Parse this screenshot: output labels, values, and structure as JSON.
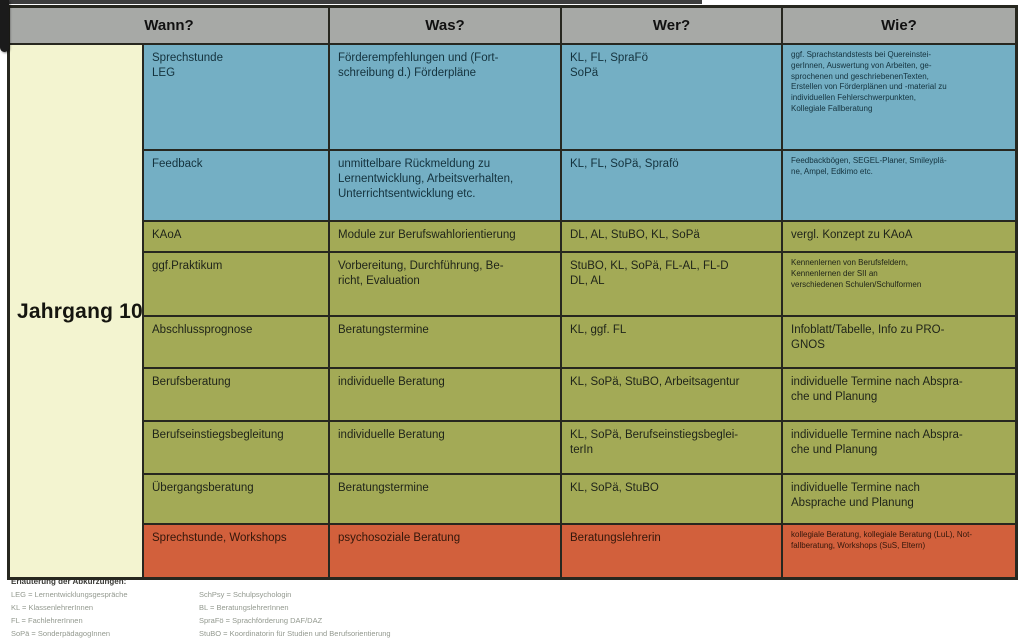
{
  "header": {
    "cols": [
      "Wann?",
      "Was?",
      "Wer?",
      "Wie?"
    ]
  },
  "row_group_label": "Jahrgang 10",
  "table": {
    "rows": [
      {
        "wann": "Sprechstunde\nLEG",
        "was": "Förderempfehlungen und (Fort-\nschreibung d.) Förderpläne",
        "wer": "KL, FL, SpraFö\nSoPä",
        "wie": "ggf. Sprachstandstests bei Quereinstei-\ngerInnen, Auswertung von Arbeiten, ge-\nsprochenen und geschriebenenTexten,\nErstellen von Förderplänen und -material zu\nindividuellen Fehlerschwerpunkten,\nKollegiale Fallberatung"
      },
      {
        "wann": "Feedback",
        "was": "unmittelbare Rückmeldung zu\nLernentwicklung, Arbeitsverhalten,\nUnterrichtsentwicklung etc.",
        "wer": "KL, FL, SoPä, Sprafö",
        "wie": "Feedbackbögen, SEGEL-Planer, Smileyplä-\nne, Ampel, Edkimo etc."
      },
      {
        "wann": "KAoA",
        "was": "Module zur Berufswahlorientierung",
        "wer": "DL, AL, StuBO, KL, SoPä",
        "wie": "vergl. Konzept zu KAoA"
      },
      {
        "wann": "ggf.Praktikum",
        "was": "Vorbereitung, Durchführung, Be-\nricht, Evaluation",
        "wer": "StuBO, KL, SoPä, FL-AL, FL-D\nDL, AL",
        "wie": "Kennenlernen von Berufsfeldern,\nKennenlernen der SII an\nverschiedenen Schulen/Schulformen"
      },
      {
        "wann": "Abschlussprognose",
        "was": "Beratungstermine",
        "wer": "KL, ggf. FL",
        "wie": "Infoblatt/Tabelle, Info zu PRO-\nGNOS"
      },
      {
        "wann": "Berufsberatung",
        "was": "individuelle Beratung",
        "wer": "KL, SoPä, StuBO, Arbeitsagentur",
        "wie": "individuelle Termine nach Abspra-\nche und Planung"
      },
      {
        "wann": "Berufseinstiegsbegleitung",
        "was": "individuelle Beratung",
        "wer": "KL, SoPä, Berufseinstiegsbeglei-\nterIn",
        "wie": "individuelle Termine nach Abspra-\nche und Planung"
      },
      {
        "wann": "Übergangsberatung",
        "was": "Beratungstermine",
        "wer": "KL, SoPä, StuBO",
        "wie": "individuelle Termine nach\nAbsprache und Planung"
      },
      {
        "wann": "Sprechstunde, Workshops",
        "was": "psychosoziale Beratung",
        "wer": "Beratungslehrerin",
        "wie": "kollegiale Beratung, kollegiale Beratung (LuL), Not-\nfallberatung, Workshops (SuS, Eltern)"
      }
    ]
  },
  "legend": {
    "title": "Erläuterung der Abkürzungen:",
    "left": [
      "LEG = Lernentwicklungsgespräche",
      "KL = KlassenlehrerInnen",
      "FL = FachlehrerInnen",
      "SoPä = SonderpädagogInnen"
    ],
    "right": [
      "SchPsy = Schulpsychologin",
      "BL = BeratungslehrerInnen",
      "SpraFö = Sprachförderung DAF/DAZ",
      "StuBO = Koordinatorin für Studien und Berufsorientierung"
    ]
  },
  "colors": {
    "header_bg": "#a7a9a6",
    "row_blue": "#74afc4",
    "row_green": "#a3aa56",
    "row_orange": "#d2603c",
    "group_column_bg": "#f3f4d0",
    "grid_border": "#27271f"
  }
}
